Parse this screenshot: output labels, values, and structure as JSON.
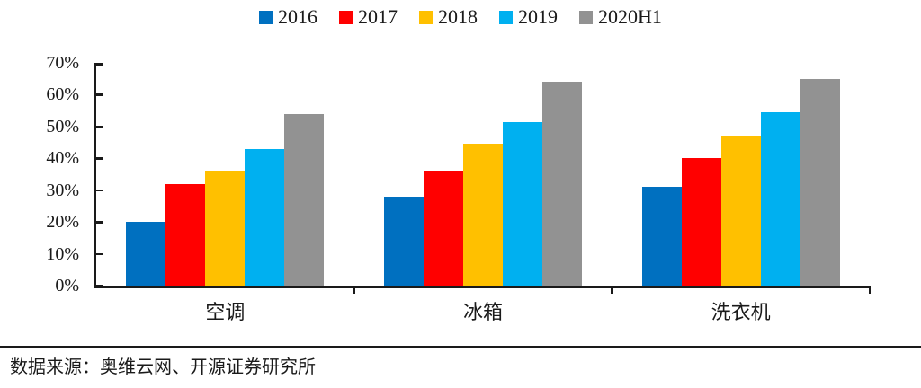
{
  "chart_data": {
    "type": "bar",
    "title": "",
    "xlabel": "",
    "ylabel": "",
    "categories": [
      "空调",
      "冰箱",
      "洗衣机"
    ],
    "series": [
      {
        "name": "2016",
        "color": "#0070C0",
        "values": [
          20,
          28,
          31
        ]
      },
      {
        "name": "2017",
        "color": "#FF0000",
        "values": [
          32,
          36,
          40
        ]
      },
      {
        "name": "2018",
        "color": "#FFC000",
        "values": [
          36,
          44.5,
          47
        ]
      },
      {
        "name": "2019",
        "color": "#00B0F0",
        "values": [
          43,
          51.5,
          54.5
        ]
      },
      {
        "name": "2020H1",
        "color": "#929292",
        "values": [
          54,
          64,
          65
        ]
      }
    ],
    "ylim": [
      0,
      70
    ],
    "ytick_step": 10,
    "ytick_labels": [
      "0%",
      "10%",
      "20%",
      "30%",
      "40%",
      "50%",
      "60%",
      "70%"
    ],
    "legend_position": "top",
    "grid": false,
    "axis_color": "#1a1a1a"
  },
  "footer": {
    "source_text": "数据来源：奥维云网、开源证券研究所"
  }
}
